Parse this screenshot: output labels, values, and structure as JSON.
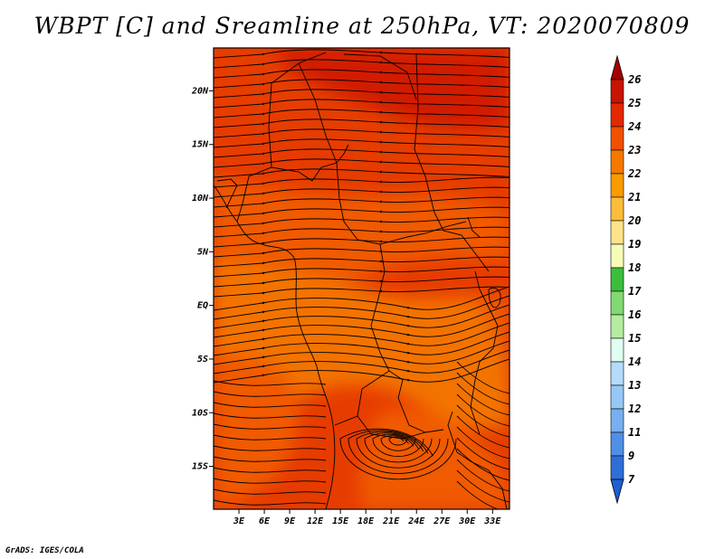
{
  "title": "WBPT [C] and Sreamline at 250hPa, VT: 2020070809",
  "credit": "GrADS: IGES/COLA",
  "map": {
    "lat_range": [
      -19,
      24
    ],
    "lon_range": [
      0,
      35
    ],
    "lat_ticks": [
      {
        "value": 20,
        "label": "20N"
      },
      {
        "value": 15,
        "label": "15N"
      },
      {
        "value": 10,
        "label": "10N"
      },
      {
        "value": 5,
        "label": "5N"
      },
      {
        "value": 0,
        "label": "EQ"
      },
      {
        "value": -5,
        "label": "5S"
      },
      {
        "value": -10,
        "label": "10S"
      },
      {
        "value": -15,
        "label": "15S"
      }
    ],
    "lon_ticks": [
      {
        "value": 3,
        "label": "3E"
      },
      {
        "value": 6,
        "label": "6E"
      },
      {
        "value": 9,
        "label": "9E"
      },
      {
        "value": 12,
        "label": "12E"
      },
      {
        "value": 15,
        "label": "15E"
      },
      {
        "value": 18,
        "label": "18E"
      },
      {
        "value": 21,
        "label": "21E"
      },
      {
        "value": 24,
        "label": "24E"
      },
      {
        "value": 27,
        "label": "27E"
      },
      {
        "value": 30,
        "label": "30E"
      },
      {
        "value": 33,
        "label": "33E"
      }
    ]
  },
  "colorbar": {
    "levels": [
      {
        "label": "26",
        "color": "#a40000"
      },
      {
        "label": "25",
        "color": "#c81400"
      },
      {
        "label": "24",
        "color": "#e42800"
      },
      {
        "label": "23",
        "color": "#f05000"
      },
      {
        "label": "22",
        "color": "#f57800"
      },
      {
        "label": "21",
        "color": "#fa9b00"
      },
      {
        "label": "20",
        "color": "#fcbd3c"
      },
      {
        "label": "19",
        "color": "#fde48a"
      },
      {
        "label": "18",
        "color": "#f6fbb8"
      },
      {
        "label": "17",
        "color": "#3cbe3c"
      },
      {
        "label": "16",
        "color": "#82d872"
      },
      {
        "label": "15",
        "color": "#b4eda0"
      },
      {
        "label": "14",
        "color": "#e0fff0"
      },
      {
        "label": "13",
        "color": "#b4dcfa"
      },
      {
        "label": "12",
        "color": "#96c8f5"
      },
      {
        "label": "11",
        "color": "#78aff0"
      },
      {
        "label": "9",
        "color": "#508fe6"
      },
      {
        "label": "7",
        "color": "#2e6ed8"
      }
    ],
    "bottom_color": "#1e5fd2"
  },
  "field_colors": {
    "c25": "#d21e00",
    "c24": "#e63c00",
    "c23": "#f05a00",
    "c22": "#f37300"
  }
}
